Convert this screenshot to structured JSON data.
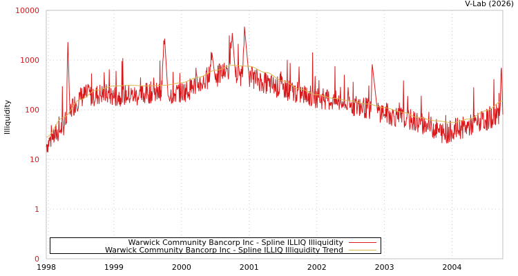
{
  "credit": "V-Lab (2026)",
  "colors": {
    "series": "#d7191c",
    "trend": "#d9b84a",
    "ytick": "#d7191c",
    "grid": "#c8c8c8",
    "frame": "#c0c0c0"
  },
  "legend": [
    {
      "label": "Warwick Community Bancorp Inc - Spline ILLIQ Illiquidity",
      "color": "#d7191c"
    },
    {
      "label": "Warwick Community Bancorp Inc - Spline ILLIQ Illiquidity Trend",
      "color": "#d9b84a"
    }
  ],
  "chart_data": {
    "type": "line",
    "title": "",
    "xlabel": "",
    "ylabel": "Illiquidity",
    "yscale": "log",
    "ylim": [
      0,
      10000
    ],
    "yticks": [
      "10000",
      "1000",
      "100",
      "10",
      "1",
      "0"
    ],
    "xticks": [
      "1998",
      "1999",
      "2000",
      "2001",
      "2002",
      "2003",
      "2004"
    ],
    "xlim": [
      1998.0,
      2004.75
    ],
    "grid": true,
    "legend_position": "bottom-left inside",
    "series": [
      {
        "name": "Warwick Community Bancorp Inc - Spline ILLIQ Illiquidity",
        "x": [
          1998.0,
          1998.1,
          1998.2,
          1998.3,
          1998.32,
          1998.35,
          1998.4,
          1998.5,
          1998.6,
          1998.7,
          1998.8,
          1998.9,
          1999.0,
          1999.1,
          1999.2,
          1999.3,
          1999.4,
          1999.5,
          1999.6,
          1999.7,
          1999.75,
          1999.8,
          1999.9,
          2000.0,
          2000.1,
          2000.2,
          2000.3,
          2000.4,
          2000.45,
          2000.5,
          2000.6,
          2000.7,
          2000.75,
          2000.8,
          2000.9,
          2000.93,
          2001.0,
          2001.1,
          2001.2,
          2001.3,
          2001.4,
          2001.5,
          2001.6,
          2001.7,
          2001.8,
          2001.9,
          2002.0,
          2002.1,
          2002.2,
          2002.3,
          2002.4,
          2002.5,
          2002.6,
          2002.7,
          2002.8,
          2002.82,
          2002.9,
          2003.0,
          2003.1,
          2003.2,
          2003.3,
          2003.4,
          2003.5,
          2003.6,
          2003.7,
          2003.8,
          2003.9,
          2004.0,
          2004.1,
          2004.2,
          2004.3,
          2004.4,
          2004.5,
          2004.6,
          2004.7,
          2004.73,
          2004.75
        ],
        "values": [
          18,
          25,
          35,
          55,
          2300,
          80,
          110,
          160,
          180,
          170,
          190,
          180,
          170,
          175,
          180,
          175,
          170,
          200,
          200,
          180,
          2700,
          190,
          190,
          200,
          230,
          280,
          320,
          350,
          1400,
          400,
          500,
          550,
          3500,
          450,
          450,
          4700,
          420,
          380,
          330,
          290,
          260,
          250,
          220,
          200,
          180,
          170,
          160,
          150,
          140,
          130,
          120,
          110,
          110,
          100,
          90,
          820,
          85,
          80,
          70,
          65,
          60,
          55,
          50,
          45,
          40,
          35,
          28,
          35,
          38,
          40,
          45,
          50,
          55,
          65,
          75,
          700,
          80
        ]
      },
      {
        "name": "Warwick Community Bancorp Inc - Spline ILLIQ Illiquidity Trend",
        "x": [
          1998.0,
          1998.25,
          1998.5,
          1998.75,
          1999.0,
          1999.25,
          1999.5,
          1999.75,
          2000.0,
          2000.25,
          2000.5,
          2000.75,
          2001.0,
          2001.25,
          2001.5,
          2001.75,
          2002.0,
          2002.25,
          2002.5,
          2002.75,
          2003.0,
          2003.25,
          2003.5,
          2003.75,
          2004.0,
          2004.25,
          2004.5,
          2004.75
        ],
        "values": [
          28,
          70,
          160,
          250,
          300,
          310,
          300,
          310,
          350,
          450,
          620,
          780,
          750,
          560,
          380,
          260,
          200,
          170,
          150,
          130,
          110,
          90,
          70,
          60,
          55,
          65,
          95,
          150
        ]
      }
    ]
  }
}
